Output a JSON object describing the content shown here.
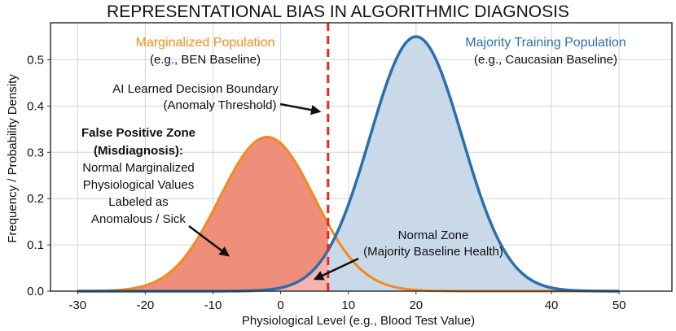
{
  "chart_data": {
    "type": "area",
    "title": "REPRESENTATIONAL BIAS IN ALGORITHMIC DIAGNOSIS",
    "xlabel": "Physiological Level (e.g., Blood Test Value)",
    "ylabel": "Frequency / Probability Density",
    "xlim": [
      -34,
      57.8
    ],
    "ylim": [
      0,
      0.58
    ],
    "xticks": [
      -30,
      -20,
      -10,
      0,
      10,
      20,
      40,
      50
    ],
    "yticks": [
      0.0,
      0.1,
      0.2,
      0.3,
      0.4,
      0.5
    ],
    "ytick_labels": [
      "0.0",
      "0.1",
      "0.2",
      "0.3",
      "0.4",
      "0.5"
    ],
    "grid": true,
    "series": [
      {
        "name": "Marginalized Population",
        "subtitle": "(e.g., BEN Baseline)",
        "shape": "gaussian",
        "mean": -2,
        "sd": 7,
        "peak": 0.333,
        "x_range": [
          -30,
          50
        ],
        "color": "#f28a1e",
        "fill": "#ef8f7b"
      },
      {
        "name": "Majority Training Population",
        "subtitle": "(e.g., Caucasian Baseline)",
        "shape": "gaussian",
        "mean": 20,
        "sd": 6.8,
        "peak": 0.55,
        "x_range": [
          -30,
          50
        ],
        "color": "#2c6fad",
        "fill": "#c9d9e8"
      }
    ],
    "threshold": {
      "x": 7,
      "color": "#e8262a",
      "label": [
        "AI Learned Decision Boundary",
        "(Anomaly Threshold)"
      ]
    },
    "overlap_fill": "#f6b3ad",
    "annotations": {
      "false_positive": {
        "bold": [
          "False Positive Zone",
          "(Misdiagnosis):"
        ],
        "lines": [
          "Normal Marginalized",
          "Physiological Values",
          "Labeled as",
          "Anomalous / Sick"
        ]
      },
      "normal_zone": [
        "Normal Zone",
        "(Majority Baseline Health)"
      ]
    }
  }
}
